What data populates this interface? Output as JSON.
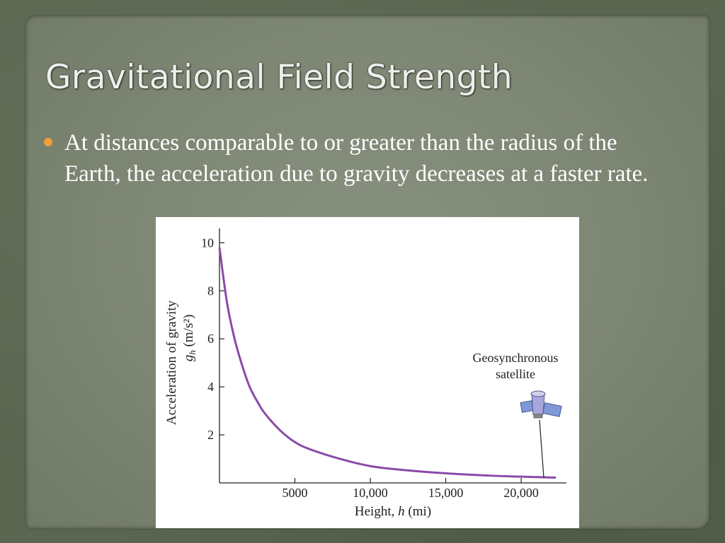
{
  "slide": {
    "title": "Gravitational Field Strength",
    "bullet": "At distances comparable to or greater than the radius of the Earth, the acceleration due to gravity decreases at a faster rate."
  },
  "colors": {
    "curve": "#8a4aa8",
    "bullet": "#ef9f38"
  },
  "chart_data": {
    "type": "line",
    "xlabel": "Height, h (mi)",
    "ylabel_line1": "Acceleration of gravity",
    "ylabel_line2": "g_h (m/s²)",
    "xlim": [
      0,
      23000
    ],
    "ylim": [
      0,
      10.6
    ],
    "xticks": [
      5000,
      10000,
      15000,
      20000
    ],
    "xtick_labels": [
      "5000",
      "10,000",
      "15,000",
      "20,000"
    ],
    "yticks": [
      2,
      4,
      6,
      8,
      10
    ],
    "ytick_labels": [
      "2",
      "4",
      "6",
      "8",
      "10"
    ],
    "series": [
      {
        "x": [
          0,
          500,
          1000,
          1500,
          2000,
          2500,
          3000,
          4000,
          5000,
          6000,
          8000,
          10000,
          12000,
          15000,
          18000,
          20000,
          22300
        ],
        "y": [
          9.8,
          7.5,
          6.0,
          4.9,
          4.0,
          3.4,
          2.9,
          2.2,
          1.7,
          1.4,
          1.0,
          0.7,
          0.55,
          0.4,
          0.3,
          0.26,
          0.22
        ]
      }
    ],
    "annotation": {
      "line1": "Geosynchronous",
      "line2": "satellite",
      "x": 21500,
      "y": 0.22
    }
  }
}
